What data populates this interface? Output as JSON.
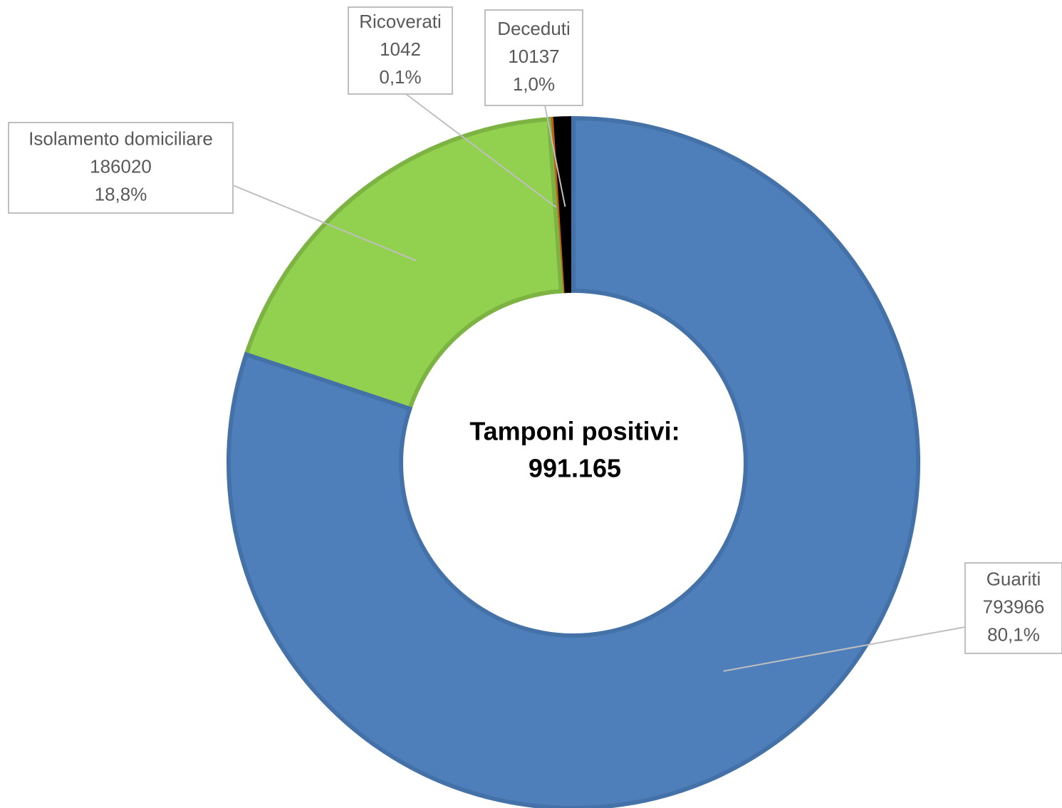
{
  "chart_data": {
    "type": "donut",
    "categories": [
      "Guariti",
      "Isolamento domiciliare",
      "Ricoverati",
      "Deceduti"
    ],
    "values": [
      793966,
      186020,
      1042,
      10137
    ],
    "share_labels": [
      "80,1%",
      "18,8%",
      "0,1%",
      "1,0%"
    ],
    "colors": [
      "#4f7fba",
      "#92d050",
      "#ed7d31",
      "#000000"
    ],
    "center_text": [
      "Tamponi positivi:",
      "991.165"
    ]
  }
}
